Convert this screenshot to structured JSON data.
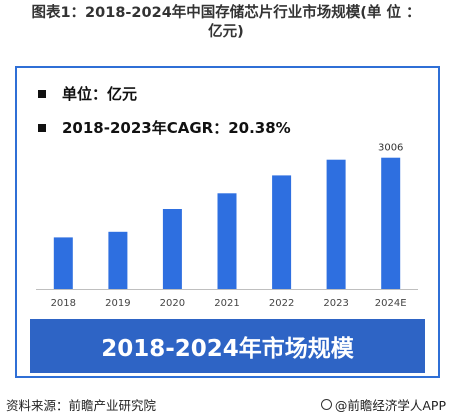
{
  "figure": {
    "title": "图表1：2018-2024年中国存储芯片行业市场规模(单 位 ： 亿元)",
    "title_line1": "图表1：2018-2024年中国存储芯片行业市场规模(单 位 ：",
    "title_line2": "亿元)"
  },
  "legend": {
    "unit_label": "单位：亿元",
    "cagr_label": "2018-2023年CAGR：20.38%"
  },
  "banner": {
    "text": "2018-2024年市场规模"
  },
  "footer": {
    "source": "资料来源：前瞻产业研究院",
    "brand": "@前瞻经济学人APP"
  },
  "colors": {
    "bar": "#2e6fe0",
    "banner": "#2e64c5",
    "frame": "#2f6fd6"
  },
  "chart_data": {
    "type": "bar",
    "categories": [
      "2018",
      "2019",
      "2020",
      "2021",
      "2022",
      "2023",
      "2024E"
    ],
    "values": [
      1180,
      1310,
      1830,
      2190,
      2600,
      2960,
      3006
    ],
    "data_labels": [
      null,
      null,
      null,
      null,
      null,
      null,
      "3006"
    ],
    "ylim": [
      0,
      3250
    ],
    "grid": false,
    "title": "",
    "xlabel": "",
    "ylabel": ""
  }
}
